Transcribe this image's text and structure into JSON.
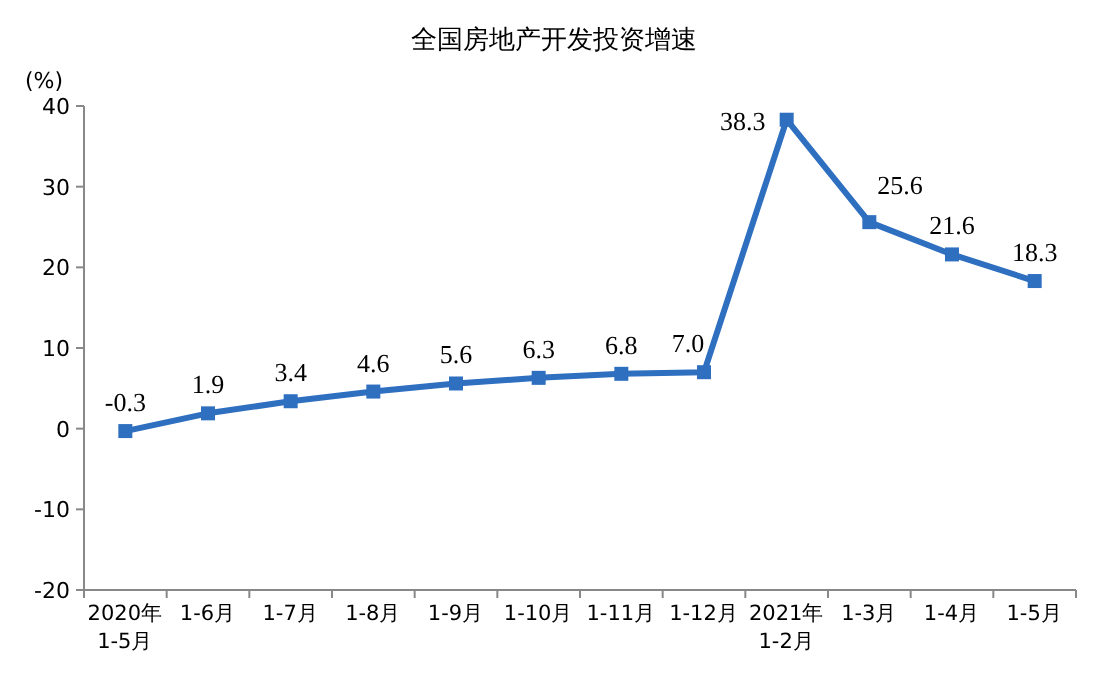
{
  "chart_data": {
    "type": "line",
    "title": "全国房地产开发投资增速",
    "ylabel": "(%)",
    "categories": [
      "2020年\n1-5月",
      "1-6月",
      "1-7月",
      "1-8月",
      "1-9月",
      "1-10月",
      "1-11月",
      "1-12月",
      "2021年\n1-2月",
      "1-3月",
      "1-4月",
      "1-5月"
    ],
    "values": [
      -0.3,
      1.9,
      3.4,
      4.6,
      5.6,
      6.3,
      6.8,
      7.0,
      38.3,
      25.6,
      21.6,
      18.3
    ],
    "value_labels": [
      "-0.3",
      "1.9",
      "3.4",
      "4.6",
      "5.6",
      "6.3",
      "6.8",
      "7.0",
      "38.3",
      "25.6",
      "21.6",
      "18.3"
    ],
    "color": "#2e6fc0",
    "marker": "square",
    "grid": false,
    "ylim": [
      -20,
      40
    ],
    "yticks": [
      -20,
      -10,
      0,
      10,
      20,
      30,
      40
    ]
  }
}
